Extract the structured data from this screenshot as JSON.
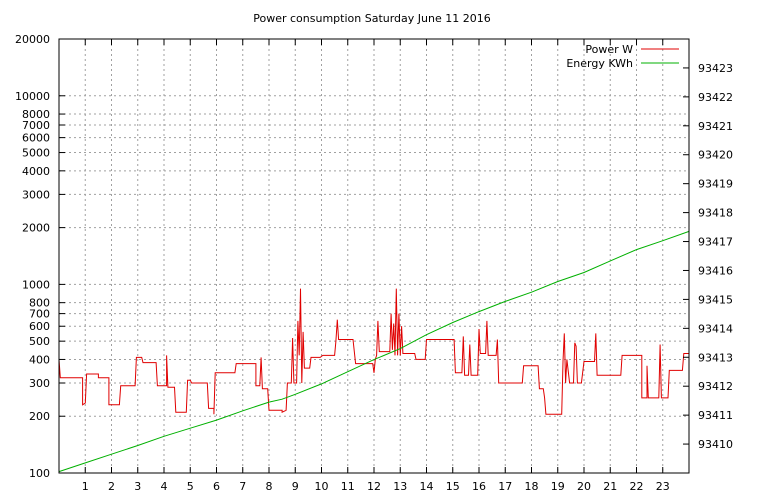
{
  "chart_data": {
    "type": "line",
    "title": "Power consumption Saturday June 11 2016",
    "x": {
      "range": [
        0,
        24
      ],
      "tick_labels": [
        "1",
        "2",
        "3",
        "4",
        "5",
        "6",
        "7",
        "8",
        "9",
        "10",
        "11",
        "12",
        "13",
        "14",
        "15",
        "16",
        "17",
        "18",
        "19",
        "20",
        "21",
        "22",
        "23"
      ]
    },
    "y_left": {
      "scale": "log",
      "range": [
        100,
        20000
      ],
      "ticks": [
        100,
        200,
        300,
        400,
        500,
        600,
        700,
        800,
        1000,
        2000,
        3000,
        4000,
        5000,
        6000,
        7000,
        8000,
        10000,
        20000
      ],
      "tick_labels": [
        "100",
        "200",
        "300",
        "400",
        "500",
        "600",
        "700",
        "800",
        "1000",
        "2000",
        "3000",
        "4000",
        "5000",
        "6000",
        "7000",
        "8000",
        "10000",
        "20000"
      ]
    },
    "y_right": {
      "scale": "linear",
      "range": [
        93409.0,
        93424.0
      ],
      "ticks": [
        93410,
        93411,
        93412,
        93413,
        93414,
        93415,
        93416,
        93417,
        93418,
        93419,
        93420,
        93421,
        93422,
        93423
      ],
      "tick_labels": [
        "93410",
        "93411",
        "93412",
        "93413",
        "93414",
        "93415",
        "93416",
        "93417",
        "93418",
        "93419",
        "93420",
        "93421",
        "93422",
        "93423"
      ]
    },
    "grid": true,
    "legend_position": "top-right",
    "series": [
      {
        "name": "Power W",
        "axis": "left",
        "color": "#e00000",
        "points": [
          [
            0,
            400
          ],
          [
            0.05,
            320
          ],
          [
            0.9,
            320
          ],
          [
            0.9,
            230
          ],
          [
            1.0,
            235
          ],
          [
            1.05,
            335
          ],
          [
            1.5,
            335
          ],
          [
            1.5,
            320
          ],
          [
            1.9,
            320
          ],
          [
            1.9,
            230
          ],
          [
            2.3,
            230
          ],
          [
            2.35,
            290
          ],
          [
            2.9,
            290
          ],
          [
            2.95,
            410
          ],
          [
            3.15,
            410
          ],
          [
            3.2,
            385
          ],
          [
            3.7,
            385
          ],
          [
            3.75,
            290
          ],
          [
            4.1,
            290
          ],
          [
            4.1,
            420
          ],
          [
            4.15,
            285
          ],
          [
            4.4,
            285
          ],
          [
            4.45,
            210
          ],
          [
            4.85,
            210
          ],
          [
            4.9,
            310
          ],
          [
            5.0,
            310
          ],
          [
            5.05,
            300
          ],
          [
            5.65,
            300
          ],
          [
            5.7,
            220
          ],
          [
            5.9,
            220
          ],
          [
            5.9,
            205
          ],
          [
            5.95,
            340
          ],
          [
            6.7,
            340
          ],
          [
            6.75,
            380
          ],
          [
            7.5,
            380
          ],
          [
            7.5,
            290
          ],
          [
            7.65,
            290
          ],
          [
            7.7,
            410
          ],
          [
            7.75,
            280
          ],
          [
            7.95,
            280
          ],
          [
            8.0,
            215
          ],
          [
            8.5,
            215
          ],
          [
            8.5,
            210
          ],
          [
            8.65,
            215
          ],
          [
            8.7,
            300
          ],
          [
            8.85,
            300
          ],
          [
            8.9,
            520
          ],
          [
            8.95,
            300
          ],
          [
            9.05,
            300
          ],
          [
            9.1,
            640
          ],
          [
            9.15,
            420
          ],
          [
            9.2,
            950
          ],
          [
            9.25,
            300
          ],
          [
            9.3,
            560
          ],
          [
            9.35,
            360
          ],
          [
            9.55,
            360
          ],
          [
            9.6,
            410
          ],
          [
            9.95,
            410
          ],
          [
            10.05,
            420
          ],
          [
            10.5,
            420
          ],
          [
            10.55,
            500
          ],
          [
            10.6,
            650
          ],
          [
            10.65,
            510
          ],
          [
            11.2,
            510
          ],
          [
            11.3,
            380
          ],
          [
            11.95,
            380
          ],
          [
            12.0,
            340
          ],
          [
            12.05,
            400
          ],
          [
            12.1,
            420
          ],
          [
            12.15,
            640
          ],
          [
            12.2,
            440
          ],
          [
            12.6,
            440
          ],
          [
            12.65,
            700
          ],
          [
            12.7,
            450
          ],
          [
            12.75,
            620
          ],
          [
            12.8,
            420
          ],
          [
            12.85,
            950
          ],
          [
            12.9,
            420
          ],
          [
            12.95,
            700
          ],
          [
            13.0,
            420
          ],
          [
            13.05,
            600
          ],
          [
            13.1,
            430
          ],
          [
            13.55,
            430
          ],
          [
            13.6,
            400
          ],
          [
            13.95,
            400
          ],
          [
            14.0,
            510
          ],
          [
            15.05,
            510
          ],
          [
            15.1,
            340
          ],
          [
            15.35,
            340
          ],
          [
            15.4,
            530
          ],
          [
            15.45,
            330
          ],
          [
            15.6,
            330
          ],
          [
            15.65,
            480
          ],
          [
            15.7,
            330
          ],
          [
            15.95,
            330
          ],
          [
            16.0,
            580
          ],
          [
            16.05,
            430
          ],
          [
            16.25,
            430
          ],
          [
            16.3,
            640
          ],
          [
            16.35,
            420
          ],
          [
            16.65,
            420
          ],
          [
            16.7,
            510
          ],
          [
            16.75,
            300
          ],
          [
            17.65,
            300
          ],
          [
            17.7,
            370
          ],
          [
            18.25,
            370
          ],
          [
            18.3,
            280
          ],
          [
            18.45,
            280
          ],
          [
            18.5,
            250
          ],
          [
            18.55,
            205
          ],
          [
            19.15,
            205
          ],
          [
            19.2,
            390
          ],
          [
            19.25,
            550
          ],
          [
            19.3,
            300
          ],
          [
            19.35,
            400
          ],
          [
            19.45,
            300
          ],
          [
            19.6,
            300
          ],
          [
            19.65,
            490
          ],
          [
            19.7,
            470
          ],
          [
            19.75,
            300
          ],
          [
            19.9,
            300
          ],
          [
            20.0,
            390
          ],
          [
            20.4,
            390
          ],
          [
            20.45,
            550
          ],
          [
            20.5,
            330
          ],
          [
            21.4,
            330
          ],
          [
            21.45,
            420
          ],
          [
            22.2,
            420
          ],
          [
            22.2,
            250
          ],
          [
            22.4,
            250
          ],
          [
            22.4,
            370
          ],
          [
            22.45,
            250
          ],
          [
            22.85,
            250
          ],
          [
            22.9,
            480
          ],
          [
            22.95,
            250
          ],
          [
            23.2,
            250
          ],
          [
            23.25,
            350
          ],
          [
            23.75,
            350
          ],
          [
            23.8,
            430
          ],
          [
            24.0,
            430
          ]
        ]
      },
      {
        "name": "Energy KWh",
        "axis": "right",
        "color": "#00b000",
        "points": [
          [
            0,
            93409.05
          ],
          [
            1,
            93409.35
          ],
          [
            2,
            93409.65
          ],
          [
            3,
            93409.95
          ],
          [
            4,
            93410.27
          ],
          [
            5,
            93410.55
          ],
          [
            6,
            93410.83
          ],
          [
            7,
            93411.15
          ],
          [
            8,
            93411.45
          ],
          [
            8.5,
            93411.55
          ],
          [
            9,
            93411.72
          ],
          [
            10,
            93412.08
          ],
          [
            11,
            93412.5
          ],
          [
            12,
            93412.92
          ],
          [
            13,
            93413.3
          ],
          [
            14,
            93413.78
          ],
          [
            15,
            93414.2
          ],
          [
            16,
            93414.58
          ],
          [
            17,
            93414.93
          ],
          [
            18,
            93415.25
          ],
          [
            19,
            93415.62
          ],
          [
            20,
            93415.93
          ],
          [
            21,
            93416.33
          ],
          [
            22,
            93416.72
          ],
          [
            23,
            93417.03
          ],
          [
            24,
            93417.35
          ]
        ]
      }
    ]
  }
}
